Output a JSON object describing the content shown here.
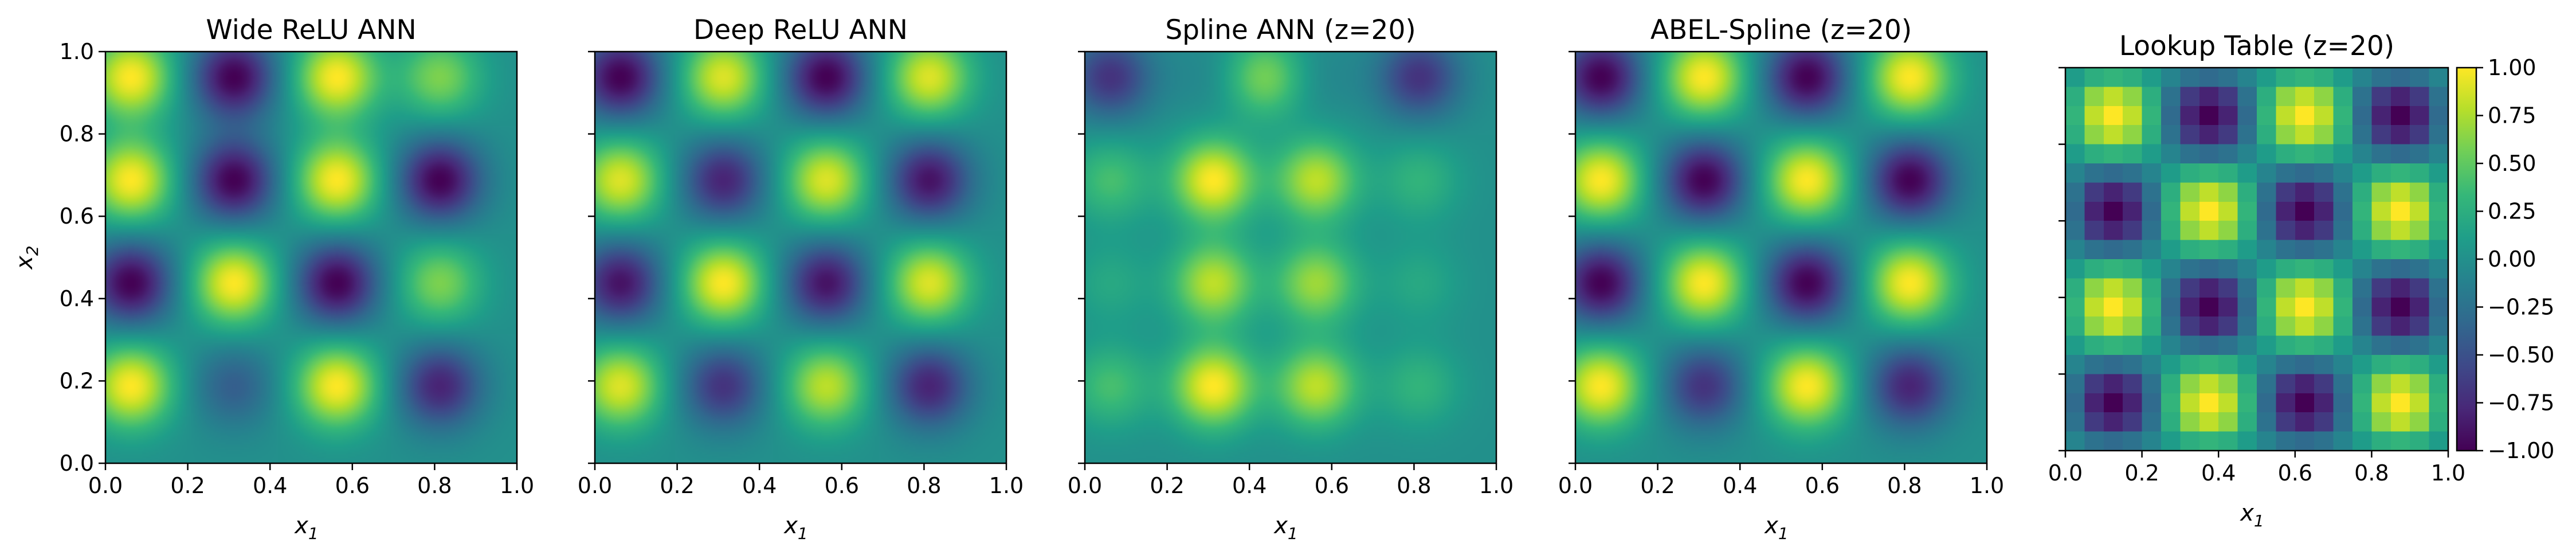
{
  "figure": {
    "colormap": "viridis",
    "colormap_stops": [
      "#440154",
      "#482878",
      "#3e4989",
      "#31688e",
      "#26828e",
      "#1f9e89",
      "#35b779",
      "#6ece58",
      "#b5de2b",
      "#fde725"
    ]
  },
  "chart_data": [
    {
      "type": "heatmap",
      "title": "Wide ReLU ANN",
      "xlabel": "x1",
      "ylabel": "x2",
      "xlim": [
        0.0,
        1.0
      ],
      "ylim": [
        0.0,
        1.0
      ],
      "xticks": [
        "0.0",
        "0.2",
        "0.4",
        "0.6",
        "0.8",
        "1.0"
      ],
      "yticks": [
        "0.0",
        "0.2",
        "0.4",
        "0.6",
        "0.8",
        "1.0"
      ],
      "rendering": "smooth",
      "grid_size": 8,
      "values": [
        [
          1,
          0,
          -1,
          0,
          1,
          0,
          0.6,
          0
        ],
        [
          0,
          0,
          0,
          0,
          0,
          0,
          0,
          0
        ],
        [
          1,
          0,
          -1,
          0,
          1,
          0,
          -1,
          0
        ],
        [
          0,
          0,
          0,
          0,
          0,
          0,
          0,
          0
        ],
        [
          -1,
          0,
          1,
          0,
          -1,
          0,
          0.6,
          0
        ],
        [
          0,
          0,
          0,
          0,
          0,
          0,
          0,
          0
        ],
        [
          1,
          0,
          -0.4,
          0,
          1,
          0,
          -0.8,
          0
        ],
        [
          0,
          0,
          0,
          0,
          0,
          0,
          0,
          0
        ]
      ]
    },
    {
      "type": "heatmap",
      "title": "Deep ReLU ANN",
      "xlabel": "x1",
      "ylabel": "",
      "xlim": [
        0.0,
        1.0
      ],
      "ylim": [
        0.0,
        1.0
      ],
      "xticks": [
        "0.0",
        "0.2",
        "0.4",
        "0.6",
        "0.8",
        "1.0"
      ],
      "yticks": [
        "",
        "",
        "",
        "",
        "",
        ""
      ],
      "rendering": "smooth",
      "grid_size": 8,
      "values": [
        [
          -1,
          0,
          0.9,
          0,
          -1,
          0,
          0.9,
          0
        ],
        [
          0,
          0,
          0,
          0,
          0,
          0,
          0,
          0
        ],
        [
          0.9,
          0,
          -0.8,
          0,
          0.9,
          0,
          -0.9,
          0
        ],
        [
          0,
          0,
          0,
          0,
          0,
          0,
          0,
          0
        ],
        [
          -0.9,
          0,
          1,
          0,
          -0.9,
          0,
          0.9,
          0
        ],
        [
          0,
          0,
          0,
          0,
          0,
          0,
          0,
          0
        ],
        [
          0.9,
          0,
          -0.7,
          0,
          0.8,
          0,
          -0.8,
          0
        ],
        [
          0,
          0,
          0,
          0,
          0,
          0,
          0,
          0
        ]
      ]
    },
    {
      "type": "heatmap",
      "title": "Spline ANN (z=20)",
      "xlabel": "x1",
      "ylabel": "",
      "xlim": [
        0.0,
        1.0
      ],
      "ylim": [
        0.0,
        1.0
      ],
      "xticks": [
        "0.0",
        "0.2",
        "0.4",
        "0.6",
        "0.8",
        "1.0"
      ],
      "yticks": [
        "",
        "",
        "",
        "",
        "",
        ""
      ],
      "rendering": "smooth",
      "grid_size": 8,
      "values": [
        [
          -0.7,
          0,
          -0.1,
          0.6,
          -0.1,
          0,
          -0.7,
          0
        ],
        [
          0,
          0,
          0,
          0,
          0,
          0,
          0,
          0
        ],
        [
          0.4,
          0,
          1,
          0,
          0.8,
          0,
          0.3,
          0
        ],
        [
          0,
          0,
          0,
          0,
          0,
          0,
          0,
          0
        ],
        [
          0.2,
          0,
          0.8,
          0,
          0.7,
          0,
          0.2,
          0
        ],
        [
          0,
          0,
          0,
          0,
          0,
          0,
          0,
          0
        ],
        [
          0.4,
          0,
          1,
          0,
          0.8,
          0,
          0.3,
          0
        ],
        [
          0,
          0,
          0,
          0,
          0,
          0,
          0,
          0
        ]
      ]
    },
    {
      "type": "heatmap",
      "title": "ABEL-Spline (z=20)",
      "xlabel": "x1",
      "ylabel": "",
      "xlim": [
        0.0,
        1.0
      ],
      "ylim": [
        0.0,
        1.0
      ],
      "xticks": [
        "0.0",
        "0.2",
        "0.4",
        "0.6",
        "0.8",
        "1.0"
      ],
      "yticks": [
        "",
        "",
        "",
        "",
        "",
        ""
      ],
      "rendering": "smooth",
      "grid_size": 8,
      "values": [
        [
          -1,
          0,
          1,
          0,
          -1,
          0,
          1,
          0
        ],
        [
          0,
          0,
          0,
          0,
          0,
          0,
          0,
          0
        ],
        [
          1,
          0,
          -1,
          0,
          1,
          0,
          -1,
          0
        ],
        [
          0,
          0,
          0,
          0,
          0,
          0,
          0,
          0
        ],
        [
          -1,
          0,
          1,
          0,
          -1,
          0,
          1,
          0
        ],
        [
          0,
          0,
          0,
          0,
          0,
          0,
          0,
          0
        ],
        [
          1,
          0,
          -0.7,
          0,
          1,
          0,
          -0.8,
          0
        ],
        [
          0,
          0,
          0,
          0,
          0,
          0,
          0,
          0
        ]
      ]
    },
    {
      "type": "heatmap",
      "title": "Lookup Table (z=20)",
      "xlabel": "x1",
      "ylabel": "",
      "xlim": [
        0.0,
        1.0
      ],
      "ylim": [
        0.0,
        1.0
      ],
      "xticks": [
        "0.0",
        "0.2",
        "0.4",
        "0.6",
        "0.8",
        "1.0"
      ],
      "yticks": [
        "",
        "",
        "",
        "",
        "",
        ""
      ],
      "rendering": "pixelated",
      "grid_size": 20,
      "values_note_omitted": null,
      "colorbar": {
        "range": [
          -1.0,
          1.0
        ],
        "ticks": [
          "1.00",
          "0.75",
          "0.50",
          "0.25",
          "0.00",
          "−0.25",
          "−0.50",
          "−0.75",
          "−1.00"
        ],
        "tick_values": [
          1.0,
          0.75,
          0.5,
          0.25,
          0.0,
          -0.25,
          -0.5,
          -0.75,
          -1.0
        ]
      }
    }
  ]
}
